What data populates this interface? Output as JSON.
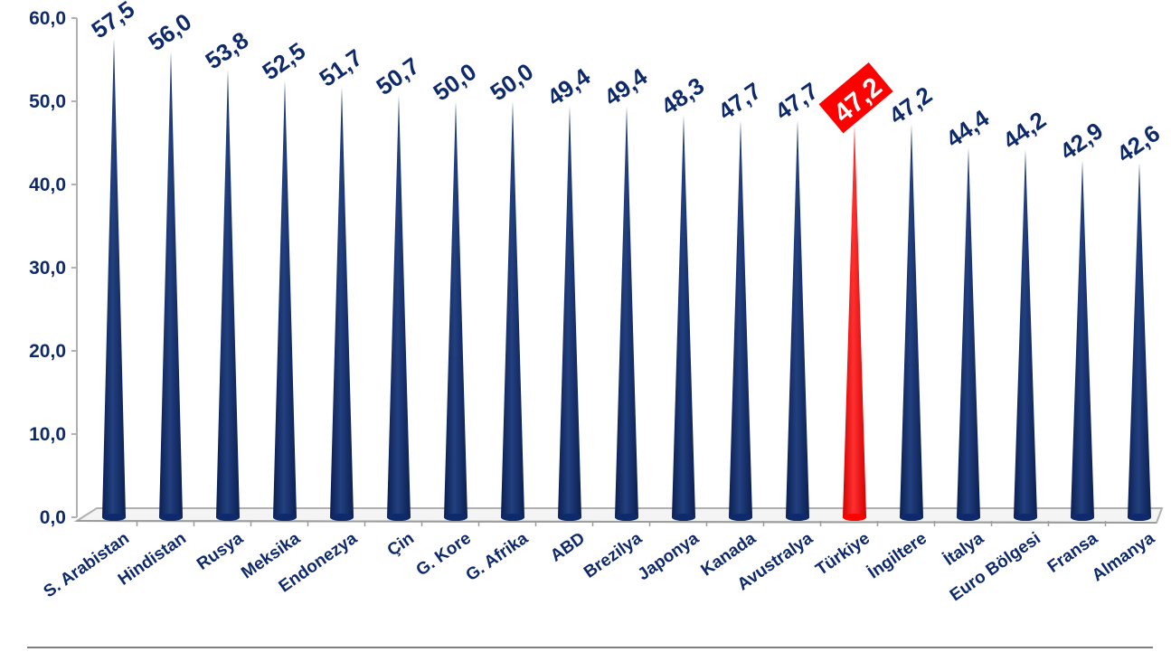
{
  "chart_data": {
    "type": "bar",
    "categories": [
      "S. Arabistan",
      "Hindistan",
      "Rusya",
      "Meksika",
      "Endonezya",
      "Çin",
      "G. Kore",
      "G. Afrika",
      "ABD",
      "Brezilya",
      "Japonya",
      "Kanada",
      "Avustralya",
      "Türkiye",
      "İngiltere",
      "İtalya",
      "Euro Bölgesi",
      "Fransa",
      "Almanya"
    ],
    "values": [
      57.5,
      56.0,
      53.8,
      52.5,
      51.7,
      50.7,
      50.0,
      50.0,
      49.4,
      49.4,
      48.3,
      47.7,
      47.7,
      47.2,
      47.2,
      44.4,
      44.2,
      42.9,
      42.6
    ],
    "value_labels": [
      "57,5",
      "56,0",
      "53,8",
      "52,5",
      "51,7",
      "50,7",
      "50,0",
      "50,0",
      "49,4",
      "49,4",
      "48,3",
      "47,7",
      "47,7",
      "47,2",
      "47,2",
      "44,4",
      "44,2",
      "42,9",
      "42,6"
    ],
    "highlight_index": 13,
    "y_ticks": [
      "0,0",
      "10,0",
      "20,0",
      "30,0",
      "40,0",
      "50,0",
      "60,0"
    ],
    "y_tick_values": [
      0,
      10,
      20,
      30,
      40,
      50,
      60
    ],
    "ylim": [
      0,
      60
    ],
    "title": "",
    "xlabel": "",
    "ylabel": "",
    "grid": false,
    "colors": {
      "bar": "#0f2a6b",
      "highlight": "#ff0000",
      "text": "#0f2a6b",
      "highlight_text": "#ffffff",
      "axis": "#b0b0b0"
    }
  }
}
